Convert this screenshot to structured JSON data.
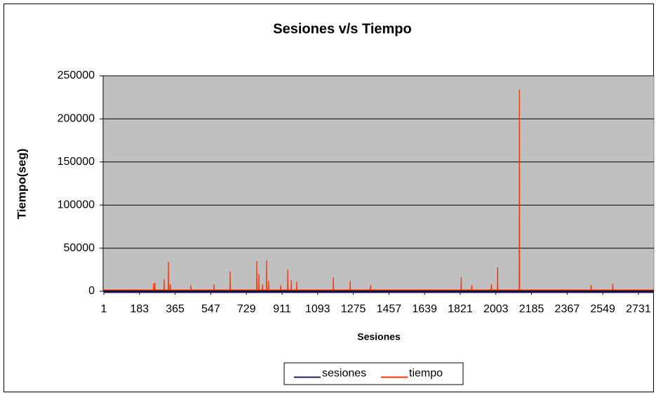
{
  "chart_data": {
    "type": "line",
    "title": "Sesiones v/s Tiempo",
    "xlabel": "Sesiones",
    "ylabel": "Tiempo(seg)",
    "xlim": [
      1,
      2810
    ],
    "xticks": [
      1,
      183,
      365,
      547,
      729,
      911,
      1093,
      1275,
      1457,
      1639,
      1821,
      2003,
      2185,
      2367,
      2549,
      2731
    ],
    "ylim": [
      0,
      250000
    ],
    "yticks": [
      0,
      50000,
      100000,
      150000,
      200000,
      250000
    ],
    "grid": true,
    "legend": "bottom",
    "x": [
      1,
      254,
      255,
      256,
      261,
      262,
      263,
      308,
      309,
      310,
      330,
      331,
      332,
      340,
      341,
      342,
      444,
      445,
      446,
      563,
      564,
      565,
      645,
      646,
      647,
      781,
      782,
      783,
      792,
      793,
      794,
      810,
      811,
      812,
      831,
      832,
      833,
      842,
      843,
      844,
      903,
      904,
      905,
      939,
      940,
      941,
      957,
      958,
      959,
      985,
      986,
      987,
      1172,
      1173,
      1174,
      1258,
      1259,
      1260,
      1362,
      1363,
      1364,
      1825,
      1826,
      1827,
      1879,
      1880,
      1881,
      1979,
      1980,
      1981,
      2011,
      2012,
      2013,
      2122,
      2123,
      2124,
      2488,
      2489,
      2490,
      2599,
      2600,
      2601,
      2810
    ],
    "series": [
      {
        "name": "sesiones",
        "color": "#1f1f5f",
        "values": [
          0,
          0,
          0,
          0,
          0,
          0,
          0,
          0,
          0,
          0,
          0,
          0,
          0,
          0,
          0,
          0,
          0,
          0,
          0,
          0,
          0,
          0,
          0,
          0,
          0,
          0,
          0,
          0,
          0,
          0,
          0,
          0,
          0,
          0,
          0,
          0,
          0,
          0,
          0,
          0,
          0,
          0,
          0,
          0,
          0,
          0,
          0,
          0,
          0,
          0,
          0,
          0,
          0,
          0,
          0,
          0,
          0,
          0,
          0,
          0,
          0,
          0,
          0,
          0,
          0,
          0,
          0,
          0,
          0,
          0,
          0,
          0,
          0,
          0,
          0,
          0,
          0,
          0,
          0,
          0,
          0,
          0,
          0
        ]
      },
      {
        "name": "tiempo",
        "color": "#ff3300",
        "values": [
          1500,
          1500,
          9000,
          1500,
          1500,
          10000,
          1500,
          1500,
          14000,
          1500,
          1500,
          34000,
          1500,
          1500,
          8000,
          1500,
          1500,
          7000,
          1500,
          1500,
          8000,
          1500,
          1500,
          23000,
          1500,
          1500,
          35000,
          1500,
          1500,
          20000,
          1500,
          1500,
          8000,
          1500,
          1500,
          36000,
          1500,
          1500,
          12000,
          1500,
          1500,
          7000,
          1500,
          1500,
          25000,
          1500,
          1500,
          13000,
          1500,
          1500,
          11000,
          1500,
          1500,
          16000,
          1500,
          1500,
          12000,
          1500,
          1500,
          7000,
          1500,
          1500,
          16000,
          1500,
          1500,
          7000,
          1500,
          1500,
          8000,
          1500,
          1500,
          28000,
          1500,
          1500,
          234000,
          1500,
          1500,
          7000,
          1500,
          1500,
          9000,
          1500,
          1500
        ]
      }
    ]
  }
}
